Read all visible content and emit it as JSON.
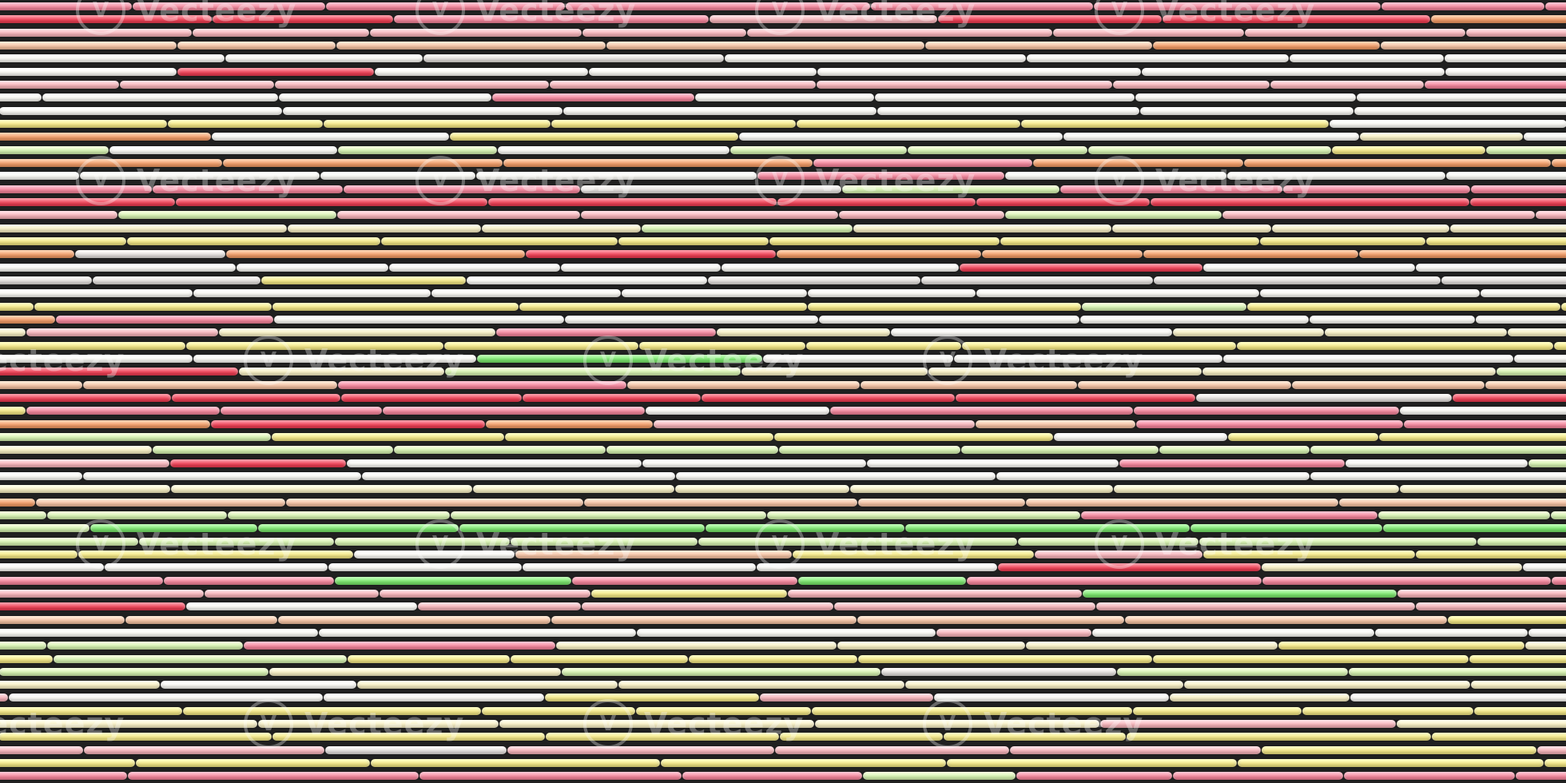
{
  "image": {
    "description_palette": {
      "red": "#f2455a",
      "pink": "#f78aa0",
      "rose": "#f9b7bd",
      "peach": "#f8c6a8",
      "orange": "#f5a06c",
      "yellow": "#f6ea8a",
      "cream": "#fbf3c8",
      "white": "#fdfcf7",
      "lightgreen": "#d9f5b4",
      "green": "#7fe871",
      "grey": "#e6e2df"
    },
    "outline_color": "#1b1b1b"
  },
  "watermark": {
    "text": "Vecteezy",
    "icon": "vecteezy-logo-icon"
  }
}
